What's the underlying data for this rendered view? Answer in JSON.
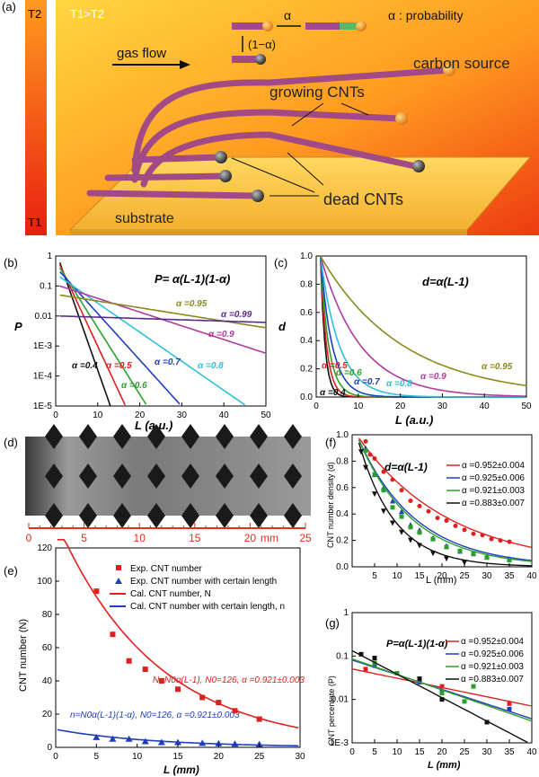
{
  "panel_a": {
    "label": "(a)",
    "t2": "T2",
    "t1": "T1",
    "condition": "T1>T2",
    "gas_flow": "gas flow",
    "alpha": "α",
    "one_minus_alpha": "(1−α)",
    "alpha_prob": "α : probability",
    "growing": "growing CNTs",
    "carbon_source": "carbon source",
    "dead": "dead CNTs",
    "substrate": "substrate",
    "colors": {
      "cnt": "#a24a86",
      "catalyst": "#f5a623",
      "dead": "#444444",
      "substrate": "#f7c24a"
    }
  },
  "panel_d": {
    "label": "(d)",
    "ticks": [
      "0",
      "5",
      "10",
      "15",
      "20",
      "mm",
      "25"
    ],
    "tick_values": [
      0,
      5,
      10,
      15,
      20,
      25
    ],
    "axis_color": "#e0301e"
  },
  "chart_data": [
    {
      "panel": "(b)",
      "type": "line",
      "formula": "P= α(L-1)(1-α)",
      "xlabel": "L (a.u.)",
      "ylabel": "P",
      "xlim": [
        0,
        50
      ],
      "ylim": [
        1e-05,
        1
      ],
      "yscale": "log",
      "xticks": [
        "0",
        "10",
        "20",
        "30",
        "40",
        "50"
      ],
      "yticks": [
        "1",
        "0.1",
        "0.01",
        "1E-3",
        "1E-4",
        "1E-5"
      ],
      "series": [
        {
          "name": "α =0.4",
          "alpha": 0.4,
          "color": "#111111"
        },
        {
          "name": "α =0.5",
          "alpha": 0.5,
          "color": "#e02020"
        },
        {
          "name": "α =0.6",
          "alpha": 0.6,
          "color": "#2ca02c"
        },
        {
          "name": "α =0.7",
          "alpha": 0.7,
          "color": "#1f3fbf"
        },
        {
          "name": "α =0.8",
          "alpha": 0.8,
          "color": "#2fc0d8"
        },
        {
          "name": "α =0.9",
          "alpha": 0.9,
          "color": "#b03aa0"
        },
        {
          "name": "α =0.95",
          "alpha": 0.95,
          "color": "#8a8a20"
        },
        {
          "name": "α =0.99",
          "alpha": 0.99,
          "color": "#5a2a8a"
        }
      ]
    },
    {
      "panel": "(c)",
      "type": "line",
      "formula": "d=α(L-1)",
      "xlabel": "L (a.u.)",
      "ylabel": "d",
      "xlim": [
        0,
        50
      ],
      "ylim": [
        0,
        1
      ],
      "xticks": [
        "0",
        "10",
        "20",
        "30",
        "40",
        "50"
      ],
      "yticks": [
        "0.0",
        "0.2",
        "0.4",
        "0.6",
        "0.8",
        "1.0"
      ],
      "series": [
        {
          "name": "α =0.4",
          "alpha": 0.4,
          "color": "#111111"
        },
        {
          "name": "α =0.5",
          "alpha": 0.5,
          "color": "#e02020"
        },
        {
          "name": "α =0.6",
          "alpha": 0.6,
          "color": "#2ca02c"
        },
        {
          "name": "α =0.7",
          "alpha": 0.7,
          "color": "#1f3fbf"
        },
        {
          "name": "α =0.8",
          "alpha": 0.8,
          "color": "#2fc0d8"
        },
        {
          "name": "α =0.9",
          "alpha": 0.9,
          "color": "#b03aa0"
        },
        {
          "name": "α =0.95",
          "alpha": 0.95,
          "color": "#8a8a20"
        }
      ]
    },
    {
      "panel": "(e)",
      "type": "scatter",
      "xlabel": "L (mm)",
      "ylabel": "CNT number (N)",
      "xlim": [
        0,
        30
      ],
      "ylim": [
        0,
        120
      ],
      "xticks": [
        "0",
        "5",
        "10",
        "15",
        "20",
        "25",
        "30"
      ],
      "yticks": [
        "0",
        "20",
        "40",
        "60",
        "80",
        "100",
        "120"
      ],
      "legend": [
        "Exp. CNT number",
        "Exp. CNT number with certain length",
        "Cal. CNT number, N",
        "Cal. CNT number with certain length, n"
      ],
      "annotation_N": "N=N0α(L-1),   N0=126,  α =0.921±0.003",
      "annotation_n": "n=N0α(L-1)(1-α),   N0=126,  α =0.921±0.003",
      "N0": 126,
      "alpha": 0.921,
      "series": [
        {
          "name": "Exp. CNT number",
          "color": "#e02020",
          "x": [
            5,
            7,
            9,
            11,
            13,
            15,
            18,
            20,
            22,
            25
          ],
          "y": [
            94,
            68,
            52,
            47,
            40,
            35,
            30,
            27,
            22,
            17
          ]
        },
        {
          "name": "Exp. CNT number with certain length",
          "color": "#1f3fbf",
          "x": [
            5,
            7,
            9,
            11,
            13,
            15,
            18,
            20,
            22,
            25
          ],
          "y": [
            6,
            5,
            5,
            3.5,
            3,
            3,
            2.5,
            2.3,
            2,
            1.8
          ]
        }
      ]
    },
    {
      "panel": "(f)",
      "type": "scatter",
      "formula": "d=α(L-1)",
      "xlabel": "L (mm)",
      "ylabel": "CNT number density (d)",
      "xlim": [
        0,
        40
      ],
      "ylim": [
        0,
        1.0
      ],
      "xticks": [
        "5",
        "10",
        "15",
        "20",
        "25",
        "30",
        "35",
        "40"
      ],
      "yticks": [
        "0.0",
        "0.2",
        "0.4",
        "0.6",
        "0.8",
        "1.0"
      ],
      "series": [
        {
          "name": "α =0.952±0.004",
          "alpha": 0.952,
          "color": "#e02020",
          "marker": "circle",
          "x": [
            3,
            4,
            5,
            7,
            9,
            11,
            13,
            15,
            17,
            19,
            21,
            23,
            25,
            27,
            29,
            31,
            33,
            35
          ],
          "y": [
            0.95,
            0.85,
            0.82,
            0.72,
            0.66,
            0.58,
            0.5,
            0.46,
            0.42,
            0.37,
            0.35,
            0.31,
            0.28,
            0.25,
            0.24,
            0.21,
            0.2,
            0.19
          ]
        },
        {
          "name": "α =0.925±0.006",
          "alpha": 0.925,
          "color": "#1f3fbf",
          "marker": "triangle",
          "x": [
            3,
            5,
            7,
            9,
            11,
            13,
            15,
            18,
            21,
            24,
            27,
            30,
            35
          ],
          "y": [
            0.9,
            0.7,
            0.6,
            0.5,
            0.42,
            0.32,
            0.28,
            0.22,
            0.16,
            0.12,
            0.1,
            0.08,
            0.06
          ]
        },
        {
          "name": "α =0.921±0.003",
          "alpha": 0.921,
          "color": "#2ca02c",
          "marker": "square",
          "x": [
            3,
            5,
            7,
            9,
            11,
            13,
            15,
            18,
            21,
            24,
            27,
            30,
            35
          ],
          "y": [
            0.88,
            0.7,
            0.58,
            0.45,
            0.38,
            0.3,
            0.26,
            0.21,
            0.15,
            0.12,
            0.1,
            0.07,
            0.05
          ]
        },
        {
          "name": "α =0.883±0.007",
          "alpha": 0.883,
          "color": "#111111",
          "marker": "triangle-down",
          "x": [
            2,
            3,
            5,
            7,
            9,
            11,
            13,
            15,
            18,
            21,
            25
          ],
          "y": [
            0.87,
            0.75,
            0.55,
            0.42,
            0.33,
            0.26,
            0.2,
            0.16,
            0.1,
            0.06,
            0.03
          ]
        }
      ]
    },
    {
      "panel": "(g)",
      "type": "line",
      "formula": "P=α(L-1)(1-α)",
      "xlabel": "L (mm)",
      "ylabel": "CNT percentate (P)",
      "xlim": [
        0,
        40
      ],
      "ylim": [
        0.001,
        1
      ],
      "yscale": "log",
      "xticks": [
        "0",
        "5",
        "10",
        "15",
        "20",
        "25",
        "30",
        "35",
        "40"
      ],
      "yticks": [
        "1",
        "0.1",
        "0.01",
        "1E-3"
      ],
      "series": [
        {
          "name": "α =0.952±0.004",
          "alpha": 0.952,
          "color": "#e02020",
          "x": [
            3,
            15,
            20,
            35
          ],
          "y": [
            0.05,
            0.03,
            0.02,
            0.008
          ]
        },
        {
          "name": "α =0.925±0.006",
          "alpha": 0.925,
          "color": "#1f3fbf",
          "x": [
            5,
            15,
            20,
            35
          ],
          "y": [
            0.06,
            0.025,
            0.015,
            0.006
          ]
        },
        {
          "name": "α =0.921±0.003",
          "alpha": 0.921,
          "color": "#2ca02c",
          "x": [
            5,
            10,
            15,
            20,
            25,
            27
          ],
          "y": [
            0.07,
            0.04,
            0.03,
            0.014,
            0.009,
            0.02
          ]
        },
        {
          "name": "α =0.883±0.007",
          "alpha": 0.883,
          "color": "#111111",
          "x": [
            2,
            5,
            15,
            20,
            30
          ],
          "y": [
            0.11,
            0.09,
            0.03,
            0.01,
            0.003
          ]
        }
      ]
    }
  ]
}
